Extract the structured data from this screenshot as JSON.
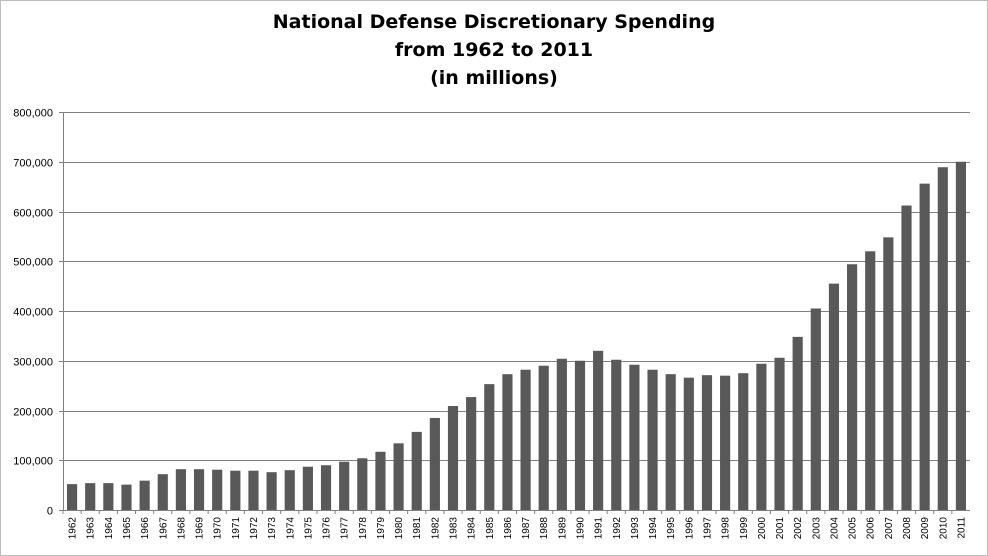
{
  "chart_data": {
    "type": "bar",
    "title_lines": [
      "National Defense Discretionary Spending",
      "from 1962 to 2011",
      "(in millions)"
    ],
    "categories": [
      "1962",
      "1963",
      "1964",
      "1965",
      "1966",
      "1967",
      "1968",
      "1969",
      "1970",
      "1971",
      "1972",
      "1973",
      "1974",
      "1975",
      "1976",
      "1977",
      "1978",
      "1979",
      "1980",
      "1981",
      "1982",
      "1983",
      "1984",
      "1985",
      "1986",
      "1987",
      "1988",
      "1989",
      "1990",
      "1991",
      "1992",
      "1993",
      "1994",
      "1995",
      "1996",
      "1997",
      "1998",
      "1999",
      "2000",
      "2001",
      "2002",
      "2003",
      "2004",
      "2005",
      "2006",
      "2007",
      "2008",
      "2009",
      "2010",
      "2011"
    ],
    "values": [
      52000,
      54000,
      54000,
      51000,
      59000,
      72000,
      82000,
      82000,
      81000,
      79000,
      79000,
      76000,
      80000,
      87000,
      90000,
      97000,
      104000,
      117000,
      134000,
      157000,
      185000,
      209000,
      227000,
      253000,
      273000,
      282000,
      290000,
      304000,
      300000,
      320000,
      302000,
      292000,
      282000,
      273000,
      266000,
      271000,
      270000,
      275000,
      294000,
      306000,
      348000,
      405000,
      455000,
      494000,
      520000,
      548000,
      612000,
      656000,
      689000,
      700000
    ],
    "ylim": [
      0,
      800000
    ],
    "yticks": [
      0,
      100000,
      200000,
      300000,
      400000,
      500000,
      600000,
      700000,
      800000
    ],
    "ytick_labels": [
      "0",
      "100,000",
      "200,000",
      "300,000",
      "400,000",
      "500,000",
      "600,000",
      "700,000",
      "800,000"
    ],
    "xlabel": "",
    "ylabel": "",
    "grid": true,
    "legend": "none",
    "bar_color": "#595959",
    "grid_color": "#808080"
  }
}
